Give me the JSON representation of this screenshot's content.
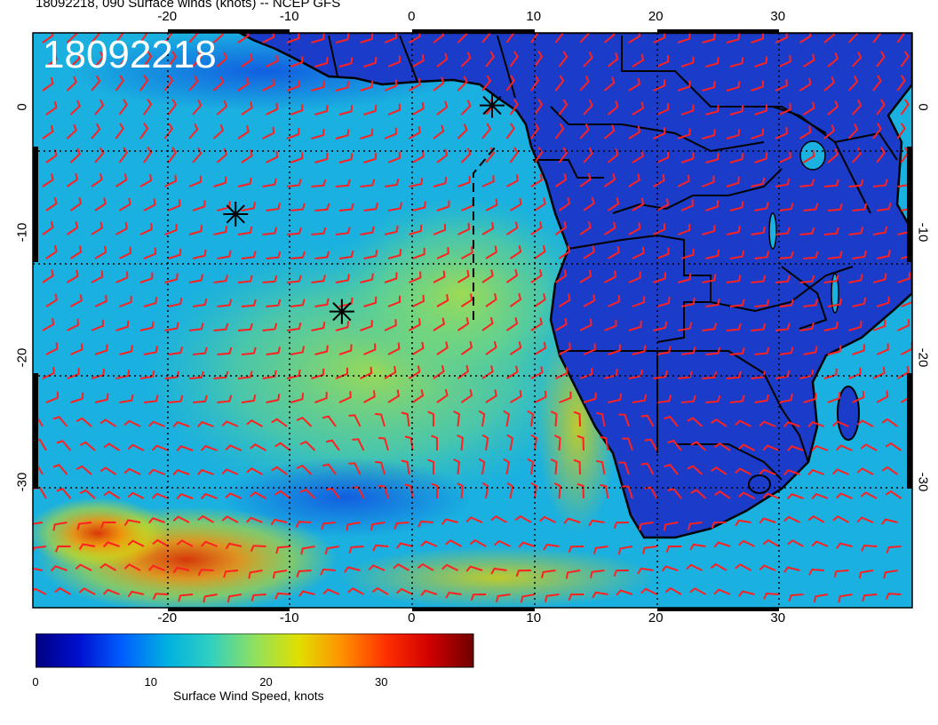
{
  "title": "18092218, 090 Surface winds (knots) -- NCEP GFS",
  "stamp": "18092218",
  "map": {
    "lon_range": [
      -31,
      41
    ],
    "lat_range": [
      6,
      -40
    ],
    "x_ticks": [
      "-20",
      "-10",
      "0",
      "10",
      "20",
      "30"
    ],
    "x_tick_values": [
      -20,
      -10,
      0,
      10,
      20,
      30
    ],
    "y_ticks": [
      "0",
      "-10",
      "-20",
      "-30"
    ],
    "y_tick_values": [
      0,
      -10,
      -20,
      -30
    ],
    "barb_color": "#ff2020",
    "land_color": "#1a3cc8",
    "ocean_color": "#18a0e0",
    "markers": [
      {
        "name": "asterisk-marker-1",
        "lon": 6.6,
        "lat": 0.2
      },
      {
        "name": "asterisk-marker-2",
        "lon": -14.4,
        "lat": -8.5
      },
      {
        "name": "asterisk-marker-3",
        "lon": -5.7,
        "lat": -16.3
      }
    ]
  },
  "colorbar": {
    "title": "Surface Wind Speed, knots",
    "ticks": [
      "0",
      "10",
      "20",
      "30"
    ],
    "tick_values": [
      0,
      10,
      20,
      30
    ],
    "max": 38,
    "colors": [
      "#000080",
      "#0010d0",
      "#0060ff",
      "#00b0e0",
      "#30d0c0",
      "#90e060",
      "#e0e000",
      "#ff9000",
      "#ff3000",
      "#d00000",
      "#700000"
    ]
  }
}
